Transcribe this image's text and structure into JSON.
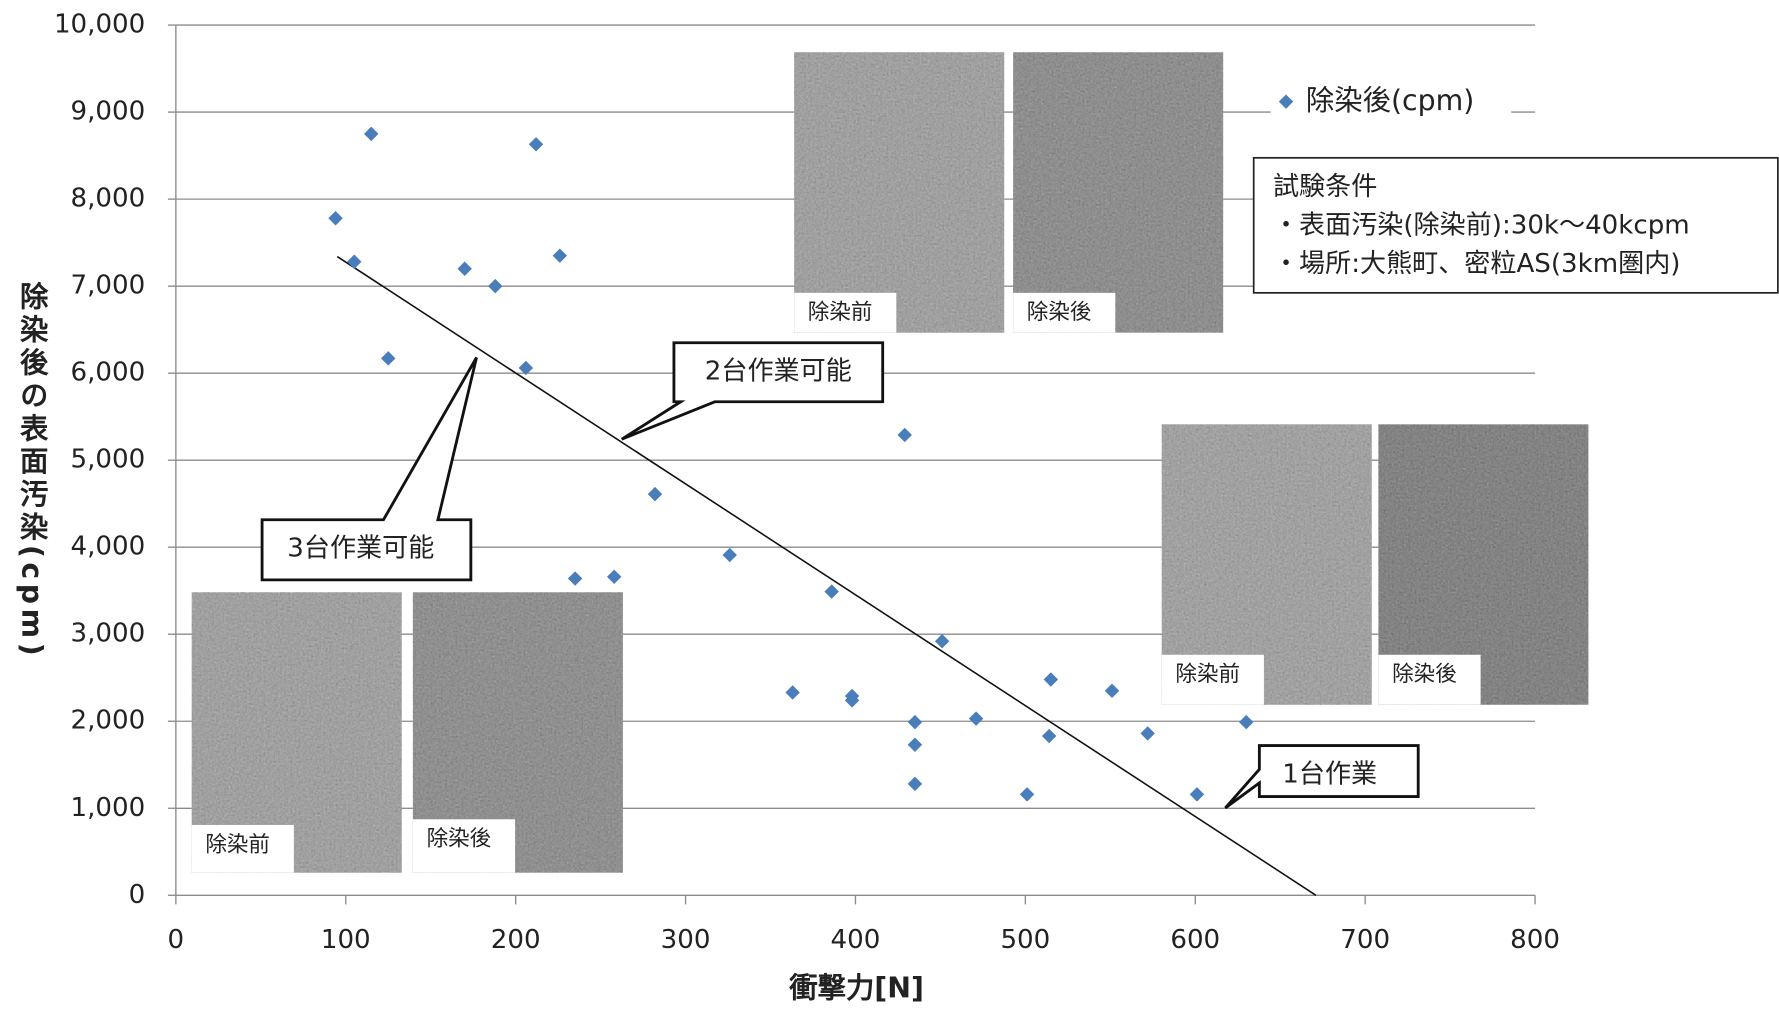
{
  "chart_data": {
    "type": "scatter",
    "x_label": "衝撃力[N]",
    "y_label": "除染後の表面汚染(cpm)",
    "xlim": [
      0,
      800
    ],
    "ylim": [
      0,
      10000
    ],
    "xticks": [
      0,
      100,
      200,
      300,
      400,
      500,
      600,
      700,
      800
    ],
    "yticks": [
      0,
      {
        "value": 1000,
        "label": "1,000"
      },
      {
        "value": 2000,
        "label": "2,000"
      },
      {
        "value": 3000,
        "label": "3,000"
      },
      {
        "value": 4000,
        "label": "4,000"
      },
      {
        "value": 5000,
        "label": "5,000"
      },
      {
        "value": 6000,
        "label": "6,000"
      },
      {
        "value": 7000,
        "label": "7,000"
      },
      {
        "value": 8000,
        "label": "8,000"
      },
      {
        "value": 9000,
        "label": "9,000"
      },
      {
        "value": 10000,
        "label": "10,000"
      }
    ],
    "grid": true,
    "series": [
      {
        "name": "除染後(cpm)",
        "color": "#4a7ebb",
        "x": [
          94,
          115,
          105,
          125,
          170,
          188,
          212,
          206,
          226,
          235,
          258,
          282,
          326,
          386,
          363,
          398,
          398,
          429,
          435,
          435,
          435,
          451,
          471,
          515,
          514,
          501,
          551,
          572,
          601,
          630
        ],
        "values": [
          7780,
          8750,
          7280,
          6170,
          7200,
          7000,
          8630,
          6060,
          7350,
          3640,
          3660,
          4610,
          3910,
          3490,
          2330,
          2290,
          2240,
          5290,
          1990,
          1730,
          1280,
          2920,
          2030,
          2480,
          1830,
          1160,
          2350,
          1860,
          1160,
          1990
        ]
      }
    ],
    "trendline": {
      "x": [
        95,
        671
      ],
      "values": [
        7340,
        0
      ]
    },
    "annotations": [
      "2台作業可能",
      "3台作業可能",
      "1台作業"
    ],
    "photo_labels": [
      "除染前",
      "除染後",
      "除染前",
      "除染後",
      "除染前",
      "除染後"
    ],
    "conditions": {
      "title": "試験条件",
      "lines": [
        "・表面汚染(除染前):30k～40kcpm",
        "・場所:大熊町、密粒AS(3km圏内)"
      ]
    }
  }
}
